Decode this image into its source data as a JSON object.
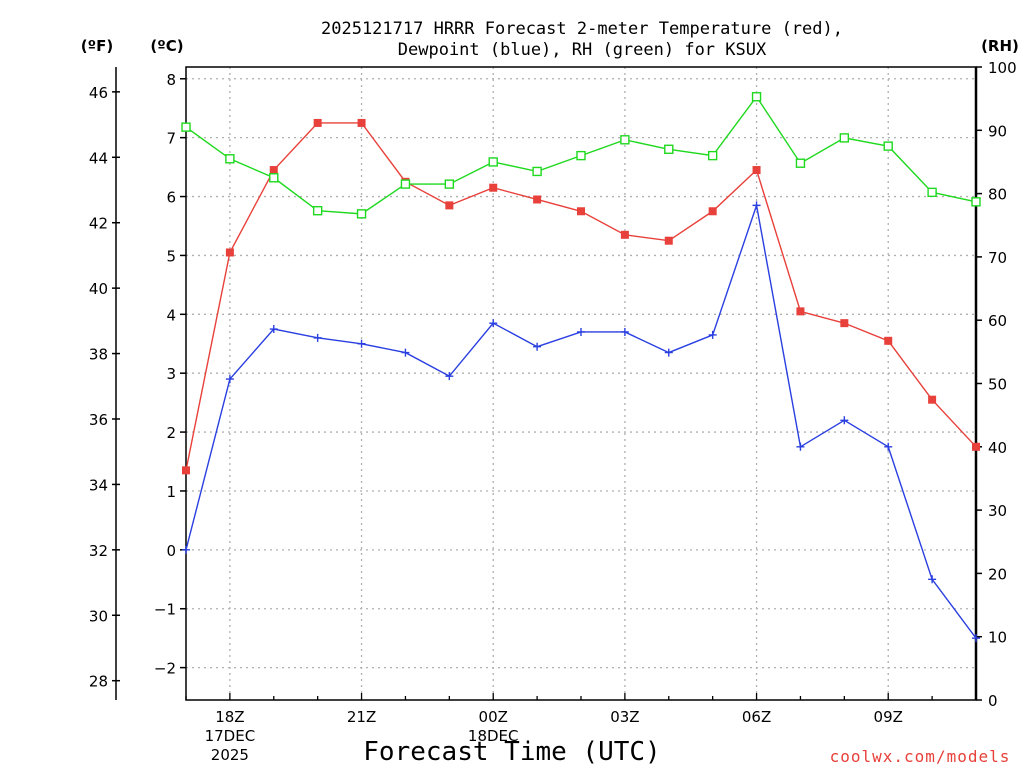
{
  "title_line1": "2025121717 HRRR Forecast 2-meter Temperature (red),",
  "title_line2": "Dewpoint (blue), RH (green) for KSUX",
  "left_unit_f": "(ºF)",
  "left_unit_c": "(ºC)",
  "right_unit": "(RH)",
  "xlabel": "Forecast Time (UTC)",
  "credit": "coolwx.com/models",
  "colors": {
    "temperature": "#e8403a",
    "dewpoint": "#2a3fe0",
    "rh": "#1ed91e",
    "grid": "#b0b0b0",
    "axis": "#000000"
  },
  "chart_data": {
    "type": "line",
    "title": "2025121717 HRRR Forecast 2-meter Temperature (red), Dewpoint (blue), RH (green) for KSUX",
    "xlabel": "Forecast Time (UTC)",
    "x_hours_from_start": [
      0,
      1,
      2,
      3,
      4,
      5,
      6,
      7,
      8,
      9,
      10,
      11,
      12,
      13,
      14,
      15,
      16,
      17,
      18
    ],
    "x_ticks": [
      {
        "hour": 1,
        "label": "18Z",
        "sub1": "17DEC",
        "sub2": "2025"
      },
      {
        "hour": 4,
        "label": "21Z"
      },
      {
        "hour": 7,
        "label": "00Z",
        "sub1": "18DEC"
      },
      {
        "hour": 10,
        "label": "03Z"
      },
      {
        "hour": 13,
        "label": "06Z"
      },
      {
        "hour": 16,
        "label": "09Z"
      }
    ],
    "y_celsius": {
      "range": [
        -2.55,
        8.2
      ],
      "ticks": [
        -2,
        -1,
        0,
        1,
        2,
        3,
        4,
        5,
        6,
        7,
        8
      ]
    },
    "y_fahrenheit": {
      "ticks": [
        28,
        30,
        32,
        34,
        36,
        38,
        40,
        42,
        44,
        46
      ]
    },
    "y_rh": {
      "range": [
        0,
        100
      ],
      "ticks": [
        0,
        10,
        20,
        30,
        40,
        50,
        60,
        70,
        80,
        90,
        100
      ]
    },
    "series": [
      {
        "name": "Temperature",
        "units": "°C",
        "marker": "filled-square",
        "values": [
          1.35,
          5.05,
          6.45,
          7.25,
          7.25,
          6.25,
          5.85,
          6.15,
          5.95,
          5.75,
          5.35,
          5.25,
          5.75,
          6.45,
          4.05,
          3.85,
          3.55,
          2.55,
          1.75
        ]
      },
      {
        "name": "Dewpoint",
        "units": "°C",
        "marker": "plus",
        "values": [
          0.0,
          2.9,
          3.75,
          3.6,
          3.5,
          3.35,
          2.95,
          3.85,
          3.45,
          3.7,
          3.7,
          3.35,
          3.65,
          5.85,
          1.75,
          2.2,
          1.75,
          -0.5,
          -1.5
        ]
      },
      {
        "name": "RH",
        "units": "%",
        "marker": "open-square",
        "values": [
          90.5,
          85.5,
          82.5,
          77.3,
          76.8,
          81.5,
          81.5,
          85.0,
          83.5,
          86.0,
          88.5,
          87.0,
          86.0,
          95.3,
          84.8,
          88.8,
          87.5,
          80.2,
          78.7
        ]
      }
    ]
  }
}
